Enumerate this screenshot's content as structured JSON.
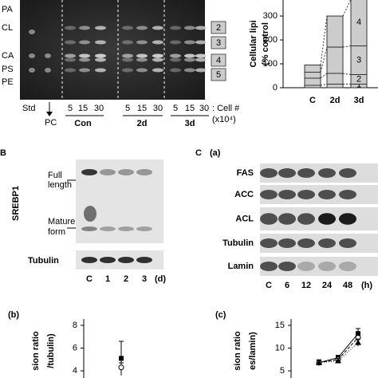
{
  "tlc": {
    "lipid_labels": [
      "PA",
      "CL",
      "CA",
      "PS",
      "PE"
    ],
    "band_numbers": [
      "2",
      "3",
      "4",
      "5"
    ],
    "std": "Std",
    "pc": "PC",
    "groups": [
      {
        "name": "Con",
        "counts": [
          "5",
          "15",
          "30"
        ]
      },
      {
        "name": "2d",
        "counts": [
          "5",
          "15",
          "30"
        ]
      },
      {
        "name": "3d",
        "counts": [
          "5",
          "15",
          "30"
        ]
      }
    ],
    "cell_label": ": Cell #",
    "cell_unit": "(x10⁴)"
  },
  "lipid_chart": {
    "y_label": [
      "Cellular lipi",
      "(% control"
    ],
    "ylim": [
      0,
      367
    ],
    "yticks": [
      0,
      100,
      200,
      300
    ],
    "categories": [
      "C",
      "2d",
      "3d"
    ],
    "segment_labels": [
      "1",
      "2",
      "3",
      "4"
    ],
    "segments": [
      [
        10,
        15,
        15
      ],
      [
        30,
        45,
        40
      ],
      [
        25,
        110,
        120
      ],
      [
        30,
        130,
        195
      ]
    ]
  },
  "panel_b": {
    "letter": "B",
    "protein": "SREBP1",
    "full": [
      "Full",
      "length"
    ],
    "mature": [
      "Mature",
      "form"
    ],
    "loading": "Tubulin",
    "lanes": [
      "C",
      "1",
      "2",
      "3",
      "(d)"
    ]
  },
  "panel_c": {
    "letter": "C",
    "sub": "(a)",
    "proteins": [
      "FAS",
      "ACC",
      "ACL",
      "Tubulin",
      "Lamin"
    ],
    "lanes": [
      "C",
      "6",
      "12",
      "24",
      "48",
      "(h)"
    ]
  },
  "plot_b": {
    "label": "(b)",
    "y_label": [
      "sion ratio",
      "/tubulin)"
    ],
    "ylim": [
      3.4,
      8.7
    ],
    "yticks": [
      4,
      6,
      8
    ],
    "series": [
      {
        "values": [
          5.1
        ],
        "errors": [
          1.5
        ]
      },
      {
        "values": [
          4.3
        ],
        "errors": [
          0.4
        ]
      }
    ]
  },
  "plot_c": {
    "label": "(c)",
    "y_label": [
      "sion ratio",
      "es/lamin)"
    ],
    "ylim": [
      3.5,
      16.5
    ],
    "yticks": [
      5,
      10,
      15
    ],
    "series": [
      {
        "values": [
          6.8,
          7.9,
          13.2
        ],
        "errors": [
          0.6,
          0.5,
          1.1
        ]
      },
      {
        "values": [
          6.8,
          7.5,
          12.3
        ],
        "errors": [
          0.6,
          0.5,
          0.9
        ]
      },
      {
        "values": [
          6.8,
          7.2,
          11.2
        ],
        "errors": [
          0.6,
          0.5,
          0.8
        ]
      }
    ]
  }
}
